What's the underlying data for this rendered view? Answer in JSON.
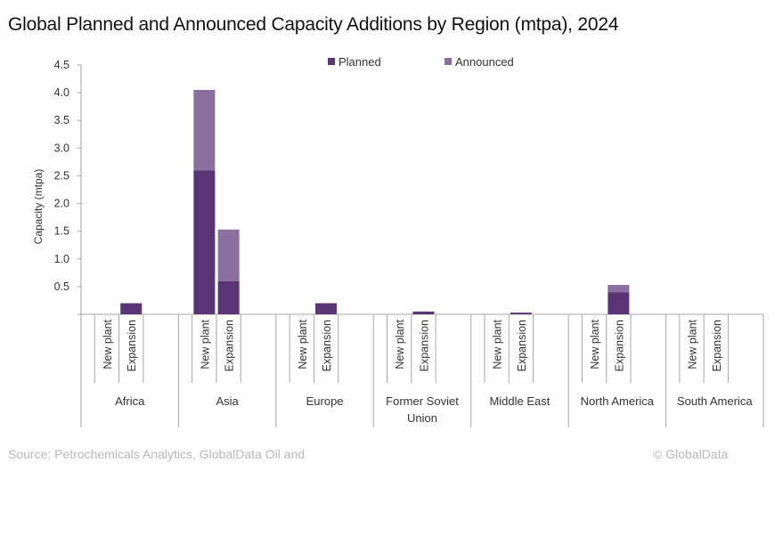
{
  "title": "Global Planned and Announced Capacity Additions by Region (mtpa), 2024",
  "source": "Source: Petrochemicals Analytics, GlobalData Oil and",
  "copyright": "© GlobalData",
  "chart_data": {
    "type": "bar",
    "stacked": true,
    "title": "Global Planned and Announced Capacity Additions by Region (mtpa), 2024",
    "xlabel": "",
    "ylabel": "Capacity (mtpa)",
    "ylim": [
      0,
      4.5
    ],
    "yticks": [
      "0.5",
      "1.0",
      "1.5",
      "2.0",
      "2.5",
      "3.0",
      "3.5",
      "4.0",
      "4.5"
    ],
    "legend_position": "top-center",
    "colors": {
      "Planned": "#5a3575",
      "Announced": "#8b6f9e"
    },
    "regions": [
      "Africa",
      "Asia",
      "Europe",
      "Former Soviet Union",
      "Middle East",
      "North America",
      "South America"
    ],
    "subcategories": [
      "New plant",
      "Expansion"
    ],
    "series": [
      {
        "name": "Planned",
        "values": [
          [
            0,
            0.2
          ],
          [
            2.6,
            0.6
          ],
          [
            0,
            0.2
          ],
          [
            0,
            0.05
          ],
          [
            0,
            0.03
          ],
          [
            0,
            0.4
          ],
          [
            0,
            0
          ]
        ]
      },
      {
        "name": "Announced",
        "values": [
          [
            0,
            0
          ],
          [
            1.45,
            0.93
          ],
          [
            0,
            0
          ],
          [
            0,
            0
          ],
          [
            0,
            0
          ],
          [
            0,
            0.13
          ],
          [
            0,
            0
          ]
        ]
      }
    ]
  }
}
